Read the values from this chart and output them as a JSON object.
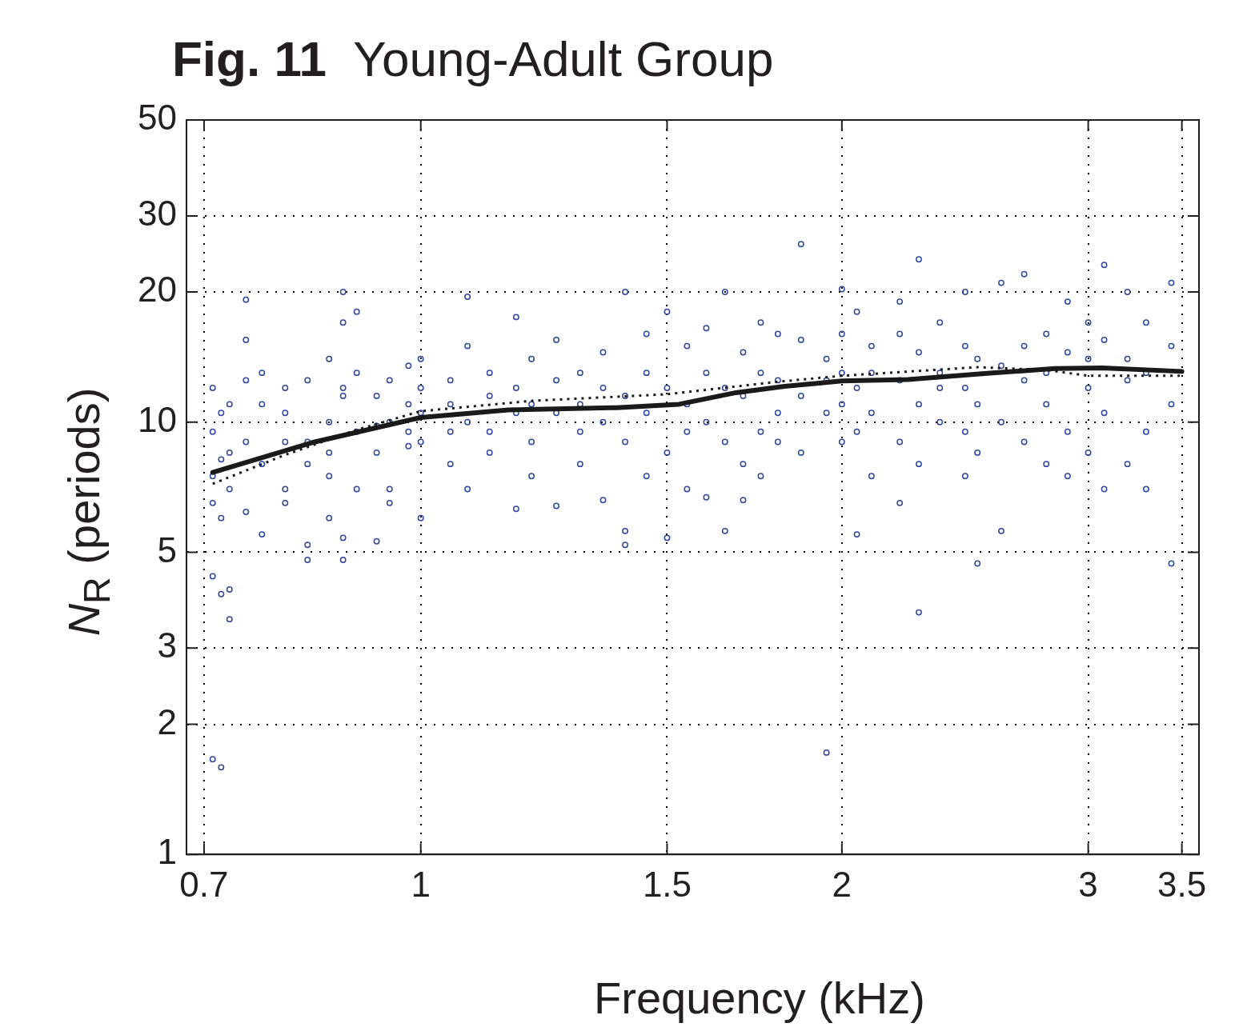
{
  "chart_data": {
    "type": "scatter",
    "title": "Fig. 11  Young-Adult Group",
    "xlabel": "Frequency (kHz)",
    "ylabel": "N$_{R}$ (periods)",
    "log": "xy",
    "grid": true,
    "xlim": [
      0.68,
      3.6
    ],
    "ylim": [
      1,
      50
    ],
    "xticks": [
      0.7,
      1,
      1.5,
      2,
      3,
      3.5
    ],
    "yticks": [
      1,
      2,
      3,
      5,
      10,
      20,
      30,
      50
    ],
    "series": [
      {
        "marker": "circle",
        "color": "#3048a0",
        "x": [
          0.71,
          0.71,
          0.71,
          0.71,
          0.71,
          0.71,
          0.72,
          0.72,
          0.72,
          0.72,
          0.72,
          0.73,
          0.73,
          0.73,
          0.73,
          0.73,
          0.75,
          0.75,
          0.75,
          0.75,
          0.75,
          0.77,
          0.77,
          0.77,
          0.77,
          0.8,
          0.8,
          0.8,
          0.8,
          0.8,
          0.83,
          0.83,
          0.83,
          0.83,
          0.83,
          0.86,
          0.86,
          0.86,
          0.86,
          0.86,
          0.88,
          0.88,
          0.88,
          0.88,
          0.88,
          0.88,
          0.9,
          0.9,
          0.9,
          0.9,
          0.93,
          0.93,
          0.93,
          0.93,
          0.95,
          0.95,
          0.95,
          0.95,
          0.98,
          0.98,
          0.98,
          0.98,
          1.0,
          1.0,
          1.0,
          1.0,
          1.0,
          1.05,
          1.05,
          1.05,
          1.05,
          1.08,
          1.08,
          1.08,
          1.08,
          1.12,
          1.12,
          1.12,
          1.12,
          1.17,
          1.17,
          1.17,
          1.17,
          1.2,
          1.2,
          1.2,
          1.2,
          1.25,
          1.25,
          1.25,
          1.25,
          1.3,
          1.3,
          1.3,
          1.3,
          1.35,
          1.35,
          1.35,
          1.35,
          1.4,
          1.4,
          1.4,
          1.4,
          1.4,
          1.45,
          1.45,
          1.45,
          1.45,
          1.5,
          1.5,
          1.5,
          1.5,
          1.55,
          1.55,
          1.55,
          1.55,
          1.6,
          1.6,
          1.6,
          1.6,
          1.65,
          1.65,
          1.65,
          1.65,
          1.7,
          1.7,
          1.7,
          1.7,
          1.75,
          1.75,
          1.75,
          1.75,
          1.8,
          1.8,
          1.8,
          1.8,
          1.87,
          1.87,
          1.87,
          1.87,
          1.95,
          1.95,
          1.95,
          1.95,
          2.0,
          2.0,
          2.0,
          2.0,
          2.0,
          2.05,
          2.05,
          2.05,
          2.05,
          2.1,
          2.1,
          2.1,
          2.1,
          2.2,
          2.2,
          2.2,
          2.2,
          2.2,
          2.27,
          2.27,
          2.27,
          2.27,
          2.27,
          2.35,
          2.35,
          2.35,
          2.35,
          2.45,
          2.45,
          2.45,
          2.45,
          2.45,
          2.5,
          2.5,
          2.5,
          2.5,
          2.6,
          2.6,
          2.6,
          2.6,
          2.7,
          2.7,
          2.7,
          2.7,
          2.8,
          2.8,
          2.8,
          2.8,
          2.9,
          2.9,
          2.9,
          2.9,
          3.0,
          3.0,
          3.0,
          3.0,
          3.08,
          3.08,
          3.08,
          3.08,
          3.2,
          3.2,
          3.2,
          3.2,
          3.3,
          3.3,
          3.3,
          3.3,
          3.44,
          3.44,
          3.44,
          3.44
        ],
        "values": [
          7.5,
          6.5,
          9.5,
          12,
          4.4,
          1.66,
          6.0,
          8.2,
          10.5,
          4.0,
          1.59,
          7.0,
          11,
          8.5,
          4.1,
          3.5,
          19.2,
          15.5,
          9.0,
          6.2,
          12.5,
          8.0,
          5.5,
          11,
          13,
          7.0,
          10.5,
          12,
          9.0,
          6.5,
          4.8,
          9.0,
          12.5,
          5.2,
          8.0,
          10,
          6.0,
          14,
          7.5,
          8.5,
          20,
          17,
          11.5,
          5.4,
          4.8,
          12,
          18,
          13,
          9.5,
          7.0,
          8.5,
          11.5,
          5.3,
          9.8,
          6.5,
          10,
          12.5,
          7.0,
          11,
          8.8,
          13.5,
          9.5,
          14,
          10.5,
          12,
          6.0,
          9.0,
          9.5,
          12.5,
          8.0,
          11,
          19.5,
          15,
          7.0,
          10,
          13,
          8.5,
          11.5,
          9.5,
          17.5,
          12,
          6.3,
          10.5,
          14,
          9.0,
          11,
          7.5,
          15.5,
          6.4,
          10.5,
          12.5,
          13,
          9.5,
          8.0,
          11,
          14.5,
          6.6,
          10,
          12,
          20,
          9.0,
          5.2,
          11.5,
          5.6,
          16,
          7.5,
          13,
          10.5,
          18,
          8.5,
          5.4,
          12,
          15,
          7.0,
          11,
          9.5,
          16.5,
          6.7,
          13,
          10,
          20,
          5.6,
          12,
          9.0,
          14.5,
          8.0,
          11.5,
          6.6,
          17,
          9.5,
          13,
          7.5,
          16,
          10.5,
          12.5,
          9.0,
          25.8,
          15.5,
          11.5,
          8.5,
          1.72,
          14,
          10.5,
          12.5,
          20.3,
          13,
          9.0,
          11,
          16,
          5.5,
          12,
          18,
          9.5,
          15,
          7.5,
          13,
          10.5,
          19,
          6.5,
          12.5,
          9.0,
          16,
          23.8,
          3.63,
          14.5,
          11,
          8.0,
          17,
          10,
          13,
          12,
          20,
          7.5,
          12,
          9.5,
          15,
          4.71,
          11,
          14,
          8.5,
          21,
          5.6,
          13.5,
          10,
          22,
          9.0,
          15,
          12.5,
          16,
          8.0,
          13,
          11,
          19,
          9.5,
          14.5,
          7.5,
          12,
          17,
          8.5,
          14,
          23.1,
          10.5,
          15.5,
          7.0,
          20,
          12.5,
          8.0,
          14,
          17,
          9.5,
          13,
          7.0,
          4.71,
          21,
          11,
          15
        ]
      },
      {
        "type": "line",
        "color": "#1a1a1a",
        "line_style": "dotted",
        "x": [
          0.71,
          0.8,
          0.9,
          1.0,
          1.2,
          1.5,
          1.8,
          2.0,
          2.5,
          2.8,
          3.0,
          3.5
        ],
        "values": [
          7.2,
          8.4,
          9.6,
          10.6,
          11.2,
          11.6,
          12.4,
          12.8,
          13.4,
          13.2,
          12.8,
          12.8
        ]
      },
      {
        "type": "line",
        "color": "#1a1a1a",
        "line_style": "solid",
        "x": [
          0.71,
          0.84,
          1.0,
          1.155,
          1.38,
          1.53,
          1.68,
          1.82,
          2.0,
          2.23,
          2.54,
          2.84,
          3.07,
          3.5
        ],
        "values": [
          7.65,
          9.0,
          10.25,
          10.67,
          10.8,
          11.0,
          11.7,
          12.1,
          12.45,
          12.55,
          12.97,
          13.3,
          13.35,
          13.1
        ]
      }
    ]
  }
}
